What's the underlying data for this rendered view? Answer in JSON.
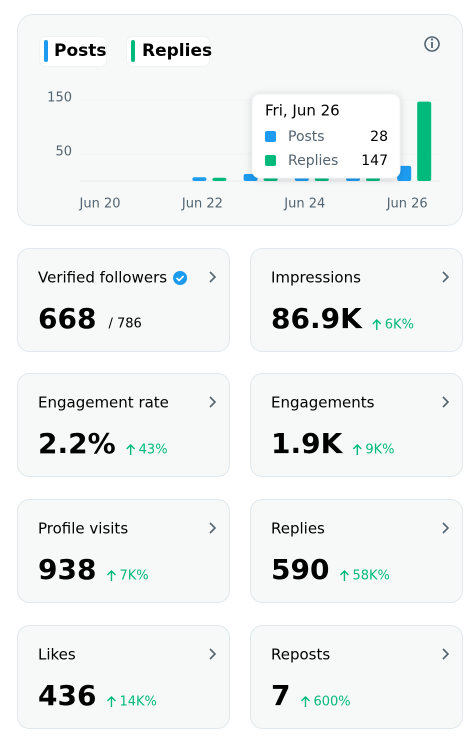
{
  "chart_data": {
    "type": "bar",
    "categories": [
      "Jun 20",
      null,
      "Jun 22",
      null,
      "Jun 24",
      null,
      "Jun 26"
    ],
    "series": [
      {
        "name": "Posts",
        "color": "#1d9bf0",
        "values": [
          0,
          0,
          7,
          13,
          8,
          8,
          28
        ]
      },
      {
        "name": "Replies",
        "color": "#00ba7c",
        "values": [
          0,
          0,
          6,
          6,
          6,
          6,
          147
        ]
      }
    ],
    "ylim": [
      0,
      150
    ],
    "yticks": [
      50,
      150
    ],
    "grid": true,
    "tooltip": {
      "title": "Fri, Jun 26"
    }
  },
  "cards": [
    {
      "title": "Verified followers",
      "value": "668",
      "total": "/ 786"
    },
    {
      "title": "Impressions",
      "value": "86.9K",
      "change": "6K%"
    },
    {
      "title": "Engagement rate",
      "value": "2.2%",
      "change": "43%"
    },
    {
      "title": "Engagements",
      "value": "1.9K",
      "change": "9K%"
    },
    {
      "title": "Profile visits",
      "value": "938",
      "change": "7K%"
    },
    {
      "title": "Replies",
      "value": "590",
      "change": "58K%"
    },
    {
      "title": "Likes",
      "value": "436",
      "change": "14K%"
    },
    {
      "title": "Reposts",
      "value": "7",
      "change": "600%"
    }
  ]
}
